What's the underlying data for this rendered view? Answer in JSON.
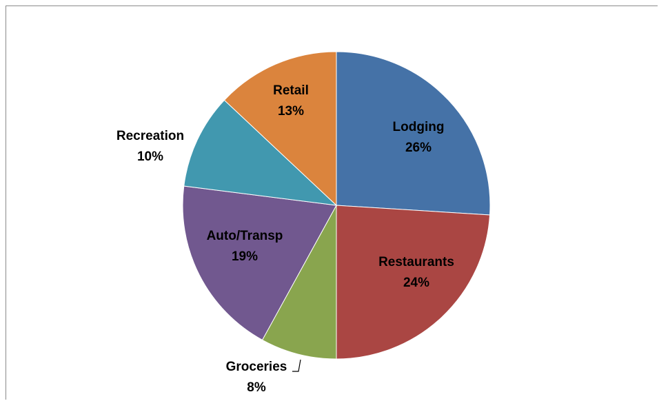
{
  "chart_data": {
    "type": "pie",
    "title": "",
    "slices": [
      {
        "label": "Lodging",
        "value": 26,
        "percent_label": "26%",
        "color": "#4572A7"
      },
      {
        "label": "Restaurants",
        "value": 24,
        "percent_label": "24%",
        "color": "#AA4643"
      },
      {
        "label": "Groceries",
        "value": 8,
        "percent_label": "8%",
        "color": "#89A54E"
      },
      {
        "label": "Auto/Transp",
        "value": 19,
        "percent_label": "19%",
        "color": "#71588F"
      },
      {
        "label": "Recreation",
        "value": 10,
        "percent_label": "10%",
        "color": "#4198AF"
      },
      {
        "label": "Retail",
        "value": 13,
        "percent_label": "13%",
        "color": "#DB843D"
      }
    ],
    "start_angle": "12 o'clock",
    "direction": "clockwise",
    "legend": "none"
  }
}
